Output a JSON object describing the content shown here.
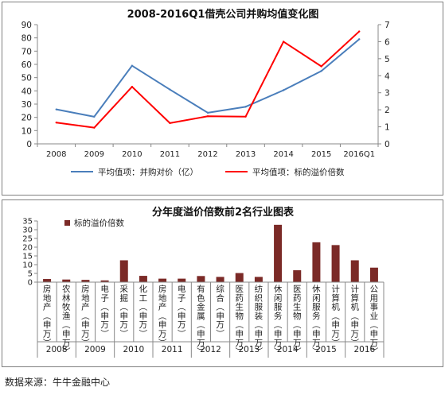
{
  "chart_data": [
    {
      "type": "line",
      "title": "2008-2016Q1借壳公司并购均值变化图",
      "categories": [
        "2008",
        "2009",
        "2010",
        "2011",
        "2012",
        "2013",
        "2014",
        "2015",
        "2016Q1"
      ],
      "y_left": {
        "ylim": [
          0,
          90
        ],
        "ticks": [
          0,
          10,
          20,
          30,
          40,
          50,
          60,
          70,
          80,
          90
        ]
      },
      "y_right": {
        "ylim": [
          0,
          7
        ],
        "ticks": [
          0,
          1,
          2,
          3,
          4,
          5,
          6,
          7
        ]
      },
      "series": [
        {
          "name": "平均值项：并购对价（亿）",
          "axis": "left",
          "color": "#4a7ebb",
          "values": [
            26,
            20.5,
            59,
            41,
            23.5,
            28,
            40.5,
            55,
            79
          ]
        },
        {
          "name": "平均值项：标的溢价倍数",
          "axis": "right",
          "color": "#ff0000",
          "values": [
            1.25,
            0.95,
            3.35,
            1.22,
            1.62,
            1.6,
            6.0,
            4.55,
            6.6
          ]
        }
      ],
      "grid": false,
      "legend": "bottom"
    },
    {
      "type": "bar",
      "title": "分年度溢价倍数前2名行业图表",
      "series": [
        {
          "name": "标的溢价倍数",
          "color": "#7b2a27"
        }
      ],
      "ylim": [
        0,
        35
      ],
      "yticks": [
        0,
        5,
        10,
        15,
        20,
        25,
        30,
        35
      ],
      "groups": [
        {
          "year": "2008",
          "items": [
            {
              "label": "房地产(申万)",
              "value": 1.8
            },
            {
              "label": "农林牧渔(申万)",
              "value": 1.5
            }
          ]
        },
        {
          "year": "2009",
          "items": [
            {
              "label": "房地产(申万)",
              "value": 1.3
            },
            {
              "label": "电子(申万)",
              "value": 1.0
            }
          ]
        },
        {
          "year": "2010",
          "items": [
            {
              "label": "采掘(申万)",
              "value": 12.5
            },
            {
              "label": "化工(申万)",
              "value": 3.6
            }
          ]
        },
        {
          "year": "2011",
          "items": [
            {
              "label": "房地产(申万)",
              "value": 2.0
            },
            {
              "label": "电子(申万)",
              "value": 2.0
            }
          ]
        },
        {
          "year": "2012",
          "items": [
            {
              "label": "有色金属(申万)",
              "value": 3.5
            },
            {
              "label": "综合(申万)",
              "value": 3.0
            }
          ]
        },
        {
          "year": "2013",
          "items": [
            {
              "label": "医药生物(申万)",
              "value": 5.2
            },
            {
              "label": "纺织服装(申万)",
              "value": 3.0
            }
          ]
        },
        {
          "year": "2014",
          "items": [
            {
              "label": "休闲服务(申万)",
              "value": 32.8
            },
            {
              "label": "医药生物(申万)",
              "value": 6.8
            }
          ]
        },
        {
          "year": "2015",
          "items": [
            {
              "label": "休闲服务(申万)",
              "value": 22.8
            },
            {
              "label": "计算机(申万)",
              "value": 21.2
            }
          ]
        },
        {
          "year": "2016",
          "items": [
            {
              "label": "计算机(申万)",
              "value": 12.5
            },
            {
              "label": "公用事业(申万)",
              "value": 8.3
            }
          ]
        }
      ]
    }
  ],
  "footer": {
    "source": "数据来源：牛牛金融中心"
  }
}
